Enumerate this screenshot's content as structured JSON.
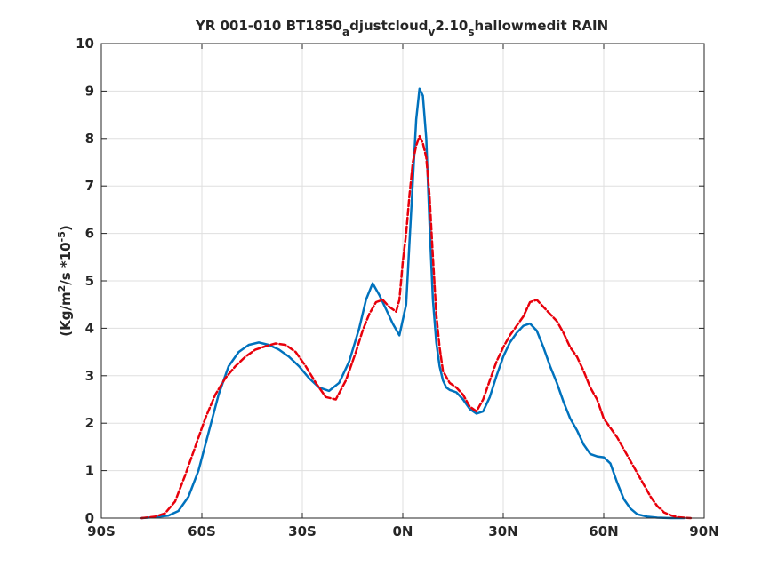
{
  "chart_data": {
    "type": "line",
    "title": "YR 001-010 BT1850",
    "title_sub": "a",
    "title_mid": "djustcloud",
    "title_sub2": "v",
    "title_mid2": "2.10",
    "title_sub3": "s",
    "title_end": "hallowmedit RAIN",
    "ylabel_main": "(Kg/m",
    "ylabel_sup": "2",
    "ylabel_mid": "/s   *10",
    "ylabel_sup2": "-5",
    "ylabel_end": ")",
    "xlim": [
      -90,
      90
    ],
    "ylim": [
      0,
      10
    ],
    "grid": true,
    "x_ticks": [
      -90,
      -60,
      -30,
      0,
      30,
      60,
      90
    ],
    "x_tick_labels": [
      "90S",
      "60S",
      "30S",
      "0N",
      "30N",
      "60N",
      "90N"
    ],
    "y_ticks": [
      0,
      1,
      2,
      3,
      4,
      5,
      6,
      7,
      8,
      9,
      10
    ],
    "y_tick_labels": [
      "0",
      "1",
      "2",
      "3",
      "4",
      "5",
      "6",
      "7",
      "8",
      "9",
      "10"
    ],
    "series": [
      {
        "color": "#0072BD",
        "style": "solid",
        "x": [
          -78,
          -74,
          -70,
          -67,
          -64,
          -61,
          -58,
          -55,
          -52,
          -49,
          -46,
          -43,
          -40,
          -37,
          -34,
          -31,
          -28,
          -25,
          -22,
          -19,
          -16,
          -13,
          -11,
          -9,
          -7,
          -5,
          -3,
          -1,
          1,
          2,
          3,
          4,
          5,
          6,
          7,
          8,
          9,
          10,
          11,
          12,
          13,
          14,
          16,
          18,
          20,
          22,
          24,
          26,
          28,
          30,
          32,
          34,
          36,
          38,
          40,
          42,
          44,
          46,
          48,
          50,
          52,
          54,
          56,
          58,
          60,
          62,
          64,
          66,
          68,
          70,
          73,
          76,
          80,
          84
        ],
        "y": [
          0,
          0.02,
          0.05,
          0.15,
          0.45,
          1.0,
          1.8,
          2.6,
          3.2,
          3.5,
          3.65,
          3.7,
          3.65,
          3.55,
          3.4,
          3.2,
          2.95,
          2.75,
          2.68,
          2.85,
          3.3,
          4.0,
          4.6,
          4.95,
          4.7,
          4.4,
          4.1,
          3.85,
          4.5,
          5.8,
          7.1,
          8.4,
          9.05,
          8.9,
          8.0,
          6.2,
          4.6,
          3.7,
          3.2,
          2.9,
          2.75,
          2.7,
          2.65,
          2.5,
          2.3,
          2.2,
          2.25,
          2.55,
          3.0,
          3.4,
          3.7,
          3.9,
          4.05,
          4.1,
          3.95,
          3.6,
          3.2,
          2.85,
          2.45,
          2.1,
          1.85,
          1.55,
          1.35,
          1.3,
          1.28,
          1.15,
          0.75,
          0.4,
          0.2,
          0.08,
          0.03,
          0.01,
          0,
          0
        ]
      },
      {
        "color": "#E8000B",
        "style": "dashed",
        "x": [
          -78,
          -74,
          -71,
          -68,
          -65,
          -62,
          -59,
          -56,
          -53,
          -50,
          -47,
          -44,
          -41,
          -38,
          -35,
          -32,
          -29,
          -26,
          -23,
          -20,
          -17,
          -14,
          -12,
          -10,
          -8,
          -6,
          -4,
          -2,
          -1,
          0,
          1,
          2,
          3,
          4,
          5,
          6,
          7,
          8,
          9,
          10,
          11,
          12,
          14,
          16,
          18,
          20,
          22,
          24,
          26,
          28,
          30,
          32,
          34,
          36,
          38,
          40,
          42,
          44,
          46,
          48,
          50,
          52,
          54,
          56,
          58,
          60,
          62,
          64,
          66,
          68,
          70,
          72,
          74,
          76,
          78,
          80,
          82,
          84,
          86
        ],
        "y": [
          0,
          0.03,
          0.1,
          0.35,
          0.9,
          1.5,
          2.1,
          2.6,
          2.95,
          3.2,
          3.4,
          3.55,
          3.62,
          3.68,
          3.65,
          3.5,
          3.2,
          2.85,
          2.55,
          2.5,
          2.9,
          3.5,
          3.95,
          4.3,
          4.55,
          4.6,
          4.45,
          4.35,
          4.6,
          5.4,
          6.0,
          6.8,
          7.5,
          7.85,
          8.05,
          7.9,
          7.6,
          6.8,
          5.5,
          4.3,
          3.6,
          3.1,
          2.85,
          2.75,
          2.6,
          2.35,
          2.25,
          2.5,
          2.9,
          3.3,
          3.6,
          3.85,
          4.05,
          4.25,
          4.55,
          4.6,
          4.45,
          4.3,
          4.15,
          3.9,
          3.6,
          3.4,
          3.1,
          2.75,
          2.5,
          2.1,
          1.9,
          1.7,
          1.45,
          1.2,
          0.95,
          0.7,
          0.45,
          0.25,
          0.12,
          0.06,
          0.02,
          0.01,
          0
        ]
      }
    ]
  }
}
